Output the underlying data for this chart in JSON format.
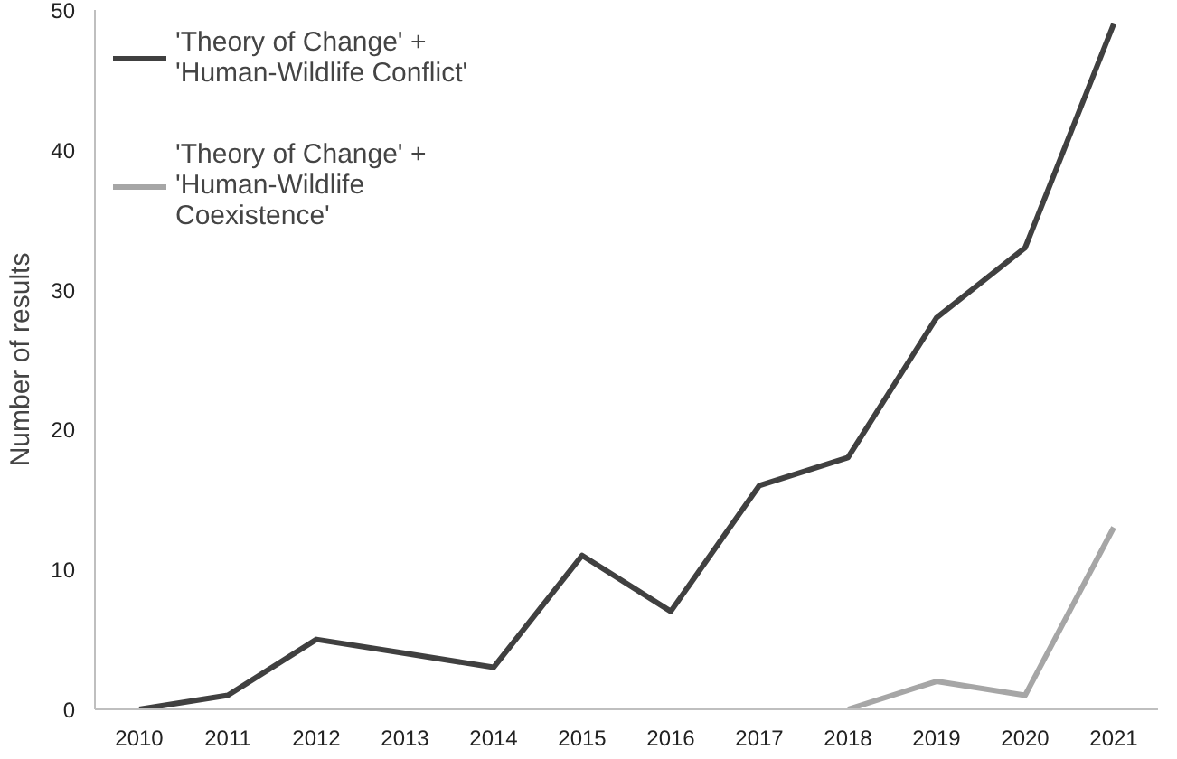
{
  "chart_data": {
    "type": "line",
    "ylabel": "Number of results",
    "categories": [
      "2010",
      "2011",
      "2012",
      "2013",
      "2014",
      "2015",
      "2016",
      "2017",
      "2018",
      "2019",
      "2020",
      "2021"
    ],
    "series": [
      {
        "name": "'Theory of Change' +\n'Human-Wildlife Conflict'",
        "color": "#404040",
        "values": [
          0,
          1,
          5,
          4,
          3,
          11,
          7,
          16,
          18,
          28,
          33,
          49
        ]
      },
      {
        "name": "'Theory of Change' +\n'Human-Wildlife\nCoexistence'",
        "color": "#a6a6a6",
        "values": [
          null,
          null,
          null,
          null,
          null,
          null,
          null,
          null,
          0,
          2,
          1,
          13
        ]
      }
    ],
    "ylim": [
      0,
      50
    ],
    "yticks": [
      0,
      10,
      20,
      30,
      40,
      50
    ],
    "grid": false,
    "legend": "top left",
    "marker": "none",
    "line_style": "solid"
  }
}
